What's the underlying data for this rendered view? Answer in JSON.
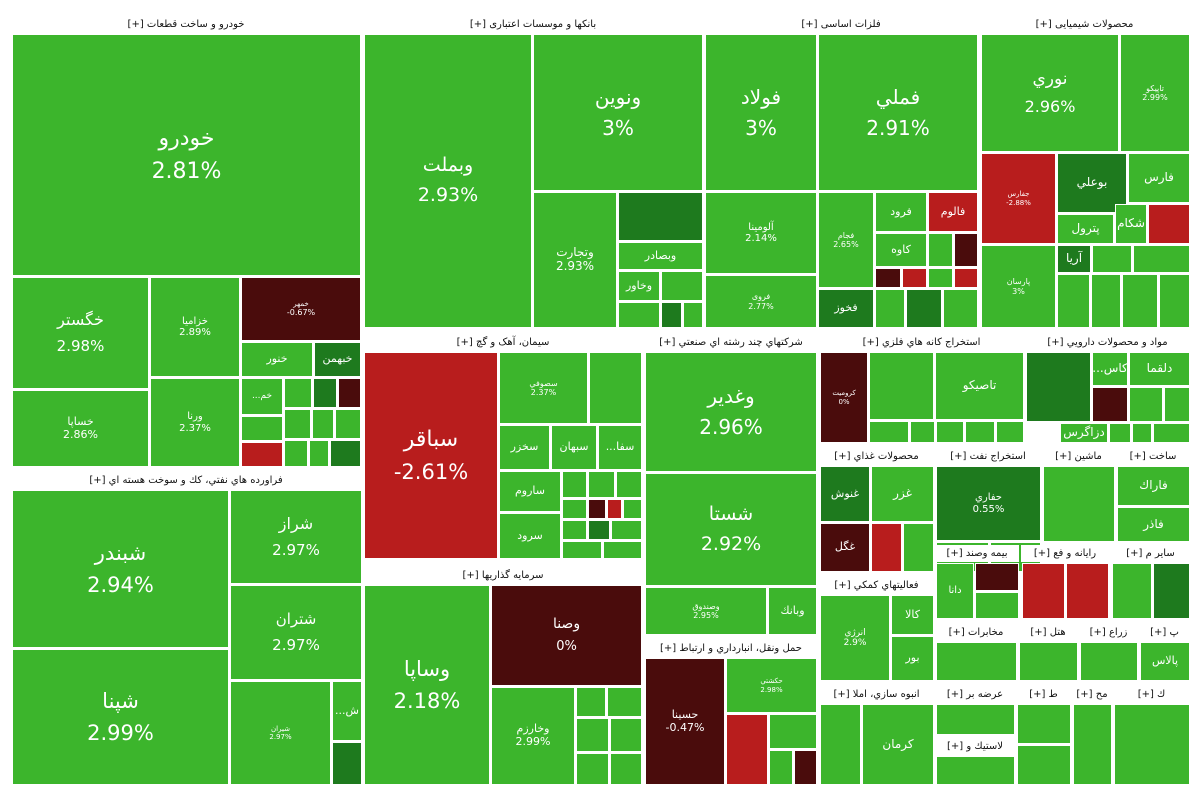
{
  "colors": {
    "green": "#3cb52c",
    "dark_green": "#1e7a1e",
    "red": "#b81d1d",
    "dark_red": "#4a0c0c"
  },
  "chart_data": {
    "type": "treemap",
    "sectors": [
      {
        "name": "خودرو و ساخت قطعات [+]",
        "tiles": [
          {
            "name": "خودرو",
            "pct": "2.81%",
            "value": 2.81
          },
          {
            "name": "خگستر",
            "pct": "2.98%",
            "value": 2.98
          },
          {
            "name": "خساپا",
            "pct": "2.86%",
            "value": 2.86
          },
          {
            "name": "خزامیا",
            "pct": "2.89%",
            "value": 2.89
          },
          {
            "name": "ورنا",
            "pct": "2.37%",
            "value": 2.37
          },
          {
            "name": "خمهر",
            "pct": "-0.67%",
            "value": -0.67
          },
          {
            "name": "خنور",
            "pct": "",
            "value": null
          },
          {
            "name": "خبهمن",
            "pct": "",
            "value": null
          },
          {
            "name": "خم...",
            "pct": "",
            "value": null
          }
        ]
      },
      {
        "name": "بانکها و موسسات اعتباری [+]",
        "tiles": [
          {
            "name": "وبملت",
            "pct": "2.93%",
            "value": 2.93
          },
          {
            "name": "ونوین",
            "pct": "3%",
            "value": 3
          },
          {
            "name": "وتجارت",
            "pct": "2.93%",
            "value": 2.93
          },
          {
            "name": "وبصادر",
            "pct": "",
            "value": null
          },
          {
            "name": "وخاور",
            "pct": "",
            "value": null
          }
        ]
      },
      {
        "name": "فلزات اساسی [+]",
        "tiles": [
          {
            "name": "فولاد",
            "pct": "3%",
            "value": 3
          },
          {
            "name": "فملي",
            "pct": "2.91%",
            "value": 2.91
          },
          {
            "name": "آلومينا",
            "pct": "2.14%",
            "value": 2.14
          },
          {
            "name": "فروی",
            "pct": "2.77%",
            "value": 2.77
          },
          {
            "name": "فجام",
            "pct": "2.65%",
            "value": 2.65
          },
          {
            "name": "فرود",
            "pct": "",
            "value": null
          },
          {
            "name": "فالوم",
            "pct": "",
            "value": null
          },
          {
            "name": "کاوه",
            "pct": "",
            "value": null
          },
          {
            "name": "فخوز",
            "pct": "",
            "value": null
          }
        ]
      },
      {
        "name": "محصولات شیمیایی [+]",
        "tiles": [
          {
            "name": "نوري",
            "pct": "2.96%",
            "value": 2.96
          },
          {
            "name": "تاپیکو",
            "pct": "2.99%",
            "value": 2.99
          },
          {
            "name": "جفارس",
            "pct": "-2.88%",
            "value": -2.88
          },
          {
            "name": "بوعلي",
            "pct": "",
            "value": null
          },
          {
            "name": "فارس",
            "pct": "",
            "value": null
          },
          {
            "name": "شکام",
            "pct": "",
            "value": null
          },
          {
            "name": "پترول",
            "pct": "",
            "value": null
          },
          {
            "name": "آريا",
            "pct": "",
            "value": null
          },
          {
            "name": "پارسان",
            "pct": "3%",
            "value": 3
          }
        ]
      },
      {
        "name": "فراورده هاي نفتي، كك و سوخت هسته اي [+]",
        "tiles": [
          {
            "name": "شبندر",
            "pct": "2.94%",
            "value": 2.94
          },
          {
            "name": "شپنا",
            "pct": "2.99%",
            "value": 2.99
          },
          {
            "name": "شراز",
            "pct": "2.97%",
            "value": 2.97
          },
          {
            "name": "شتران",
            "pct": "2.97%",
            "value": 2.97
          },
          {
            "name": "شیران",
            "pct": "2.97%",
            "value": 2.97
          },
          {
            "name": "ش...",
            "pct": "",
            "value": null
          }
        ]
      },
      {
        "name": "سیمان، آهک و گچ [+]",
        "tiles": [
          {
            "name": "سباقر",
            "pct": "-2.61%",
            "value": -2.61
          },
          {
            "name": "سصوفي",
            "pct": "2.37%",
            "value": 2.37
          },
          {
            "name": "سخزر",
            "pct": "",
            "value": null
          },
          {
            "name": "سبهان",
            "pct": "",
            "value": null
          },
          {
            "name": "سفا...",
            "pct": "",
            "value": null
          },
          {
            "name": "ساروم",
            "pct": "",
            "value": null
          },
          {
            "name": "سرود",
            "pct": "",
            "value": null
          }
        ]
      },
      {
        "name": "شرکتهاي چند رشته اي صنعتي [+]",
        "tiles": [
          {
            "name": "وغدير",
            "pct": "2.96%",
            "value": 2.96
          },
          {
            "name": "شستا",
            "pct": "2.92%",
            "value": 2.92
          },
          {
            "name": "وصندوق",
            "pct": "2.95%",
            "value": 2.95
          },
          {
            "name": "وبانك",
            "pct": "",
            "value": null
          }
        ]
      },
      {
        "name": "استخراج کانه هاي فلزي [+]",
        "tiles": [
          {
            "name": "کرومیت",
            "pct": "0%",
            "value": 0
          },
          {
            "name": "تاصیکو",
            "pct": "",
            "value": null
          }
        ]
      },
      {
        "name": "مواد و محصولات دارويي [+]",
        "tiles": [
          {
            "name": "دلقما",
            "pct": "",
            "value": null
          },
          {
            "name": "کاس...",
            "pct": "",
            "value": null
          },
          {
            "name": "دزاگرس",
            "pct": "",
            "value": null
          }
        ]
      },
      {
        "name": "سرمايه گذاريها [+]",
        "tiles": [
          {
            "name": "وساپا",
            "pct": "2.18%",
            "value": 2.18
          },
          {
            "name": "وصنا",
            "pct": "0%",
            "value": 0
          },
          {
            "name": "وخارزم",
            "pct": "2.99%",
            "value": 2.99
          }
        ]
      },
      {
        "name": "حمل ونقل، انبارداري و ارتباط [+]",
        "tiles": [
          {
            "name": "حسينا",
            "pct": "-0.47%",
            "value": -0.47
          },
          {
            "name": "حکشتي",
            "pct": "2.98%",
            "value": 2.98
          }
        ]
      },
      {
        "name": "محصولات غذاي [+]",
        "tiles": [
          {
            "name": "غنوش",
            "pct": "",
            "value": null
          },
          {
            "name": "غزر",
            "pct": "",
            "value": null
          },
          {
            "name": "غگل",
            "pct": "",
            "value": null
          }
        ]
      },
      {
        "name": "استخراج نفت [+]",
        "tiles": [
          {
            "name": "حفاري",
            "pct": "0.55%",
            "value": 0.55
          }
        ]
      },
      {
        "name": "ماشين [+]",
        "tiles": []
      },
      {
        "name": "ساخت [+]",
        "tiles": [
          {
            "name": "فاراك",
            "pct": "",
            "value": null
          },
          {
            "name": "فاذر",
            "pct": "",
            "value": null
          }
        ]
      },
      {
        "name": "فعاليتهاي كمكي [+]",
        "tiles": [
          {
            "name": "انرژي",
            "pct": "2.9%",
            "value": 2.9
          },
          {
            "name": "كالا",
            "pct": "",
            "value": null
          },
          {
            "name": "بور",
            "pct": "",
            "value": null
          }
        ]
      },
      {
        "name": "بيمه وصند [+]",
        "tiles": [
          {
            "name": "دانا",
            "pct": "",
            "value": null
          }
        ]
      },
      {
        "name": "رايانه و فع [+]",
        "tiles": []
      },
      {
        "name": "ساير م [+]",
        "tiles": []
      },
      {
        "name": "مخابرات [+]",
        "tiles": []
      },
      {
        "name": "هتل [+]",
        "tiles": []
      },
      {
        "name": "زراع [+]",
        "tiles": []
      },
      {
        "name": "پ [+]",
        "tiles": [
          {
            "name": "پالاس",
            "pct": "",
            "value": null
          }
        ]
      },
      {
        "name": "انبوه سازي، املا [+]",
        "tiles": [
          {
            "name": "كرمان",
            "pct": "",
            "value": null
          }
        ]
      },
      {
        "name": "عرضه بر [+]",
        "tiles": []
      },
      {
        "name": "لاستيك و [+]",
        "tiles": []
      },
      {
        "name": "ط [+]",
        "tiles": []
      },
      {
        "name": "مح [+]",
        "tiles": []
      },
      {
        "name": "ك [+]",
        "tiles": []
      }
    ]
  }
}
